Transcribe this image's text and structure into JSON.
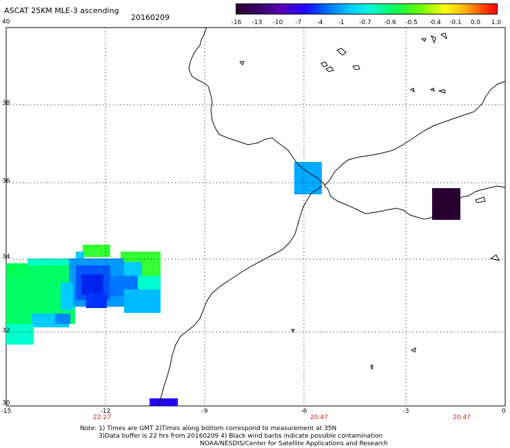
{
  "title": "ASCAT 25KM MLE-3 ascending",
  "date": "20160209",
  "colorbar": {
    "ticks": [
      "-16",
      "-13",
      "-10",
      "-7",
      "-4",
      "-1",
      "-0.7",
      "-0.6",
      "-0.5",
      "-0.4",
      "-0.1",
      "0.0",
      "1.0"
    ]
  },
  "axes": {
    "lat_labels": [
      "40",
      "38",
      "36",
      "34",
      "32",
      "30"
    ],
    "lon_labels": [
      "-15",
      "-12",
      "-9",
      "-6",
      "-3",
      "0"
    ]
  },
  "times": [
    "22:27",
    "20:47",
    "20:47"
  ],
  "notes": {
    "line1": "Note: 1) Times are GMT 2)Times along bottom correspond to measurement at 35N",
    "line2": "3)Data buffer is 22 hrs from 20160209 4) Black wind barbs indicate possible contamination",
    "line3": "NOAA/NESDIS/Center for Satellite Applications and Research"
  },
  "colors": {
    "coast": "#000000",
    "grid": "#000000",
    "time_text": "#cc2200"
  }
}
